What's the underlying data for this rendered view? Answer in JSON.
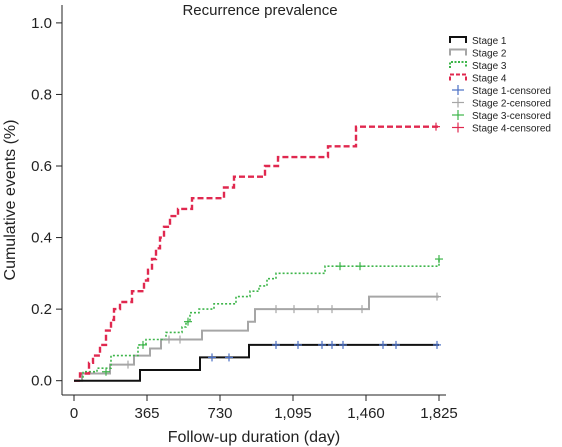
{
  "chart_data": {
    "type": "line",
    "title": "Recurrence prevalence",
    "xlabel": "Follow-up duration (day)",
    "ylabel": "Cumulative events (%)",
    "xlim": [
      -60,
      1860
    ],
    "ylim": [
      -0.04,
      1.05
    ],
    "x_ticks": [
      0,
      365,
      730,
      1095,
      1460,
      1825
    ],
    "x_tick_labels": [
      "0",
      "365",
      "730",
      "1,095",
      "1,460",
      "1,825"
    ],
    "y_ticks": [
      0.0,
      0.2,
      0.4,
      0.6,
      0.8,
      1.0
    ],
    "y_tick_labels": [
      "0.0",
      "0.2",
      "0.4",
      "0.6",
      "0.8",
      "1.0"
    ],
    "grid": false,
    "legend_position": "top-right",
    "series": [
      {
        "name": "Stage 1",
        "color": "#111111",
        "dash": "solid",
        "steps": [
          [
            0,
            0
          ],
          [
            330,
            0
          ],
          [
            330,
            0.03
          ],
          [
            630,
            0.03
          ],
          [
            630,
            0.065
          ],
          [
            875,
            0.065
          ],
          [
            875,
            0.1
          ],
          [
            1825,
            0.1
          ]
        ],
        "censored": [
          [
            690,
            0.065
          ],
          [
            775,
            0.065
          ],
          [
            1010,
            0.1
          ],
          [
            1120,
            0.1
          ],
          [
            1240,
            0.1
          ],
          [
            1290,
            0.1
          ],
          [
            1345,
            0.1
          ],
          [
            1545,
            0.1
          ],
          [
            1610,
            0.1
          ],
          [
            1815,
            0.1
          ]
        ]
      },
      {
        "name": "Stage 2",
        "color": "#a6a6a6",
        "dash": "solid",
        "steps": [
          [
            0,
            0
          ],
          [
            40,
            0
          ],
          [
            40,
            0.02
          ],
          [
            180,
            0.02
          ],
          [
            180,
            0.045
          ],
          [
            300,
            0.045
          ],
          [
            300,
            0.07
          ],
          [
            380,
            0.07
          ],
          [
            380,
            0.09
          ],
          [
            435,
            0.09
          ],
          [
            435,
            0.115
          ],
          [
            640,
            0.115
          ],
          [
            640,
            0.14
          ],
          [
            870,
            0.14
          ],
          [
            870,
            0.165
          ],
          [
            905,
            0.165
          ],
          [
            905,
            0.2
          ],
          [
            1475,
            0.2
          ],
          [
            1475,
            0.235
          ],
          [
            1825,
            0.235
          ]
        ],
        "censored": [
          [
            270,
            0.045
          ],
          [
            475,
            0.115
          ],
          [
            530,
            0.115
          ],
          [
            1010,
            0.2
          ],
          [
            1100,
            0.2
          ],
          [
            1220,
            0.2
          ],
          [
            1290,
            0.2
          ],
          [
            1440,
            0.2
          ],
          [
            1815,
            0.235
          ]
        ]
      },
      {
        "name": "Stage 3",
        "color": "#3db54a",
        "dash": "dotted",
        "steps": [
          [
            0,
            0
          ],
          [
            45,
            0
          ],
          [
            45,
            0.025
          ],
          [
            115,
            0.025
          ],
          [
            115,
            0.035
          ],
          [
            185,
            0.035
          ],
          [
            185,
            0.07
          ],
          [
            320,
            0.07
          ],
          [
            320,
            0.1
          ],
          [
            360,
            0.1
          ],
          [
            360,
            0.115
          ],
          [
            460,
            0.115
          ],
          [
            460,
            0.135
          ],
          [
            540,
            0.135
          ],
          [
            540,
            0.15
          ],
          [
            560,
            0.15
          ],
          [
            560,
            0.165
          ],
          [
            580,
            0.165
          ],
          [
            580,
            0.19
          ],
          [
            625,
            0.19
          ],
          [
            625,
            0.2
          ],
          [
            700,
            0.2
          ],
          [
            700,
            0.215
          ],
          [
            810,
            0.215
          ],
          [
            810,
            0.235
          ],
          [
            880,
            0.235
          ],
          [
            880,
            0.25
          ],
          [
            925,
            0.25
          ],
          [
            925,
            0.265
          ],
          [
            965,
            0.265
          ],
          [
            965,
            0.285
          ],
          [
            1010,
            0.285
          ],
          [
            1010,
            0.3
          ],
          [
            1255,
            0.3
          ],
          [
            1255,
            0.32
          ],
          [
            1825,
            0.32
          ],
          [
            1825,
            0.34
          ]
        ],
        "censored": [
          [
            160,
            0.025
          ],
          [
            345,
            0.1
          ],
          [
            570,
            0.165
          ],
          [
            1330,
            0.32
          ],
          [
            1430,
            0.32
          ],
          [
            1825,
            0.34
          ]
        ]
      },
      {
        "name": "Stage 4",
        "color": "#e0284f",
        "dash": "dashed",
        "steps": [
          [
            0,
            0
          ],
          [
            30,
            0
          ],
          [
            30,
            0.02
          ],
          [
            75,
            0.02
          ],
          [
            75,
            0.05
          ],
          [
            95,
            0.05
          ],
          [
            95,
            0.07
          ],
          [
            130,
            0.07
          ],
          [
            130,
            0.1
          ],
          [
            160,
            0.1
          ],
          [
            160,
            0.14
          ],
          [
            185,
            0.14
          ],
          [
            185,
            0.17
          ],
          [
            200,
            0.17
          ],
          [
            200,
            0.2
          ],
          [
            230,
            0.2
          ],
          [
            230,
            0.22
          ],
          [
            290,
            0.22
          ],
          [
            290,
            0.25
          ],
          [
            350,
            0.25
          ],
          [
            350,
            0.28
          ],
          [
            370,
            0.28
          ],
          [
            370,
            0.31
          ],
          [
            390,
            0.31
          ],
          [
            390,
            0.34
          ],
          [
            410,
            0.34
          ],
          [
            410,
            0.37
          ],
          [
            430,
            0.37
          ],
          [
            430,
            0.4
          ],
          [
            450,
            0.4
          ],
          [
            450,
            0.43
          ],
          [
            480,
            0.43
          ],
          [
            480,
            0.46
          ],
          [
            520,
            0.46
          ],
          [
            520,
            0.48
          ],
          [
            590,
            0.48
          ],
          [
            590,
            0.51
          ],
          [
            750,
            0.51
          ],
          [
            750,
            0.54
          ],
          [
            800,
            0.54
          ],
          [
            800,
            0.57
          ],
          [
            955,
            0.57
          ],
          [
            955,
            0.6
          ],
          [
            1020,
            0.6
          ],
          [
            1020,
            0.625
          ],
          [
            1270,
            0.625
          ],
          [
            1270,
            0.655
          ],
          [
            1410,
            0.655
          ],
          [
            1410,
            0.71
          ],
          [
            1825,
            0.71
          ]
        ],
        "censored": [
          [
            1810,
            0.71
          ]
        ]
      }
    ],
    "legend": [
      {
        "label": "Stage 1",
        "type": "line",
        "color": "#111111",
        "dash": "solid"
      },
      {
        "label": "Stage 2",
        "type": "line",
        "color": "#a6a6a6",
        "dash": "solid"
      },
      {
        "label": "Stage 3",
        "type": "line",
        "color": "#3db54a",
        "dash": "dotted"
      },
      {
        "label": "Stage 4",
        "type": "line",
        "color": "#e0284f",
        "dash": "dashed"
      },
      {
        "label": "Stage 1-censored",
        "type": "plus",
        "color": "#4a6fc4"
      },
      {
        "label": "Stage 2-censored",
        "type": "plus",
        "color": "#a6a6a6"
      },
      {
        "label": "Stage 3-censored",
        "type": "plus",
        "color": "#3db54a"
      },
      {
        "label": "Stage 4-censored",
        "type": "plus",
        "color": "#e0284f"
      }
    ]
  }
}
